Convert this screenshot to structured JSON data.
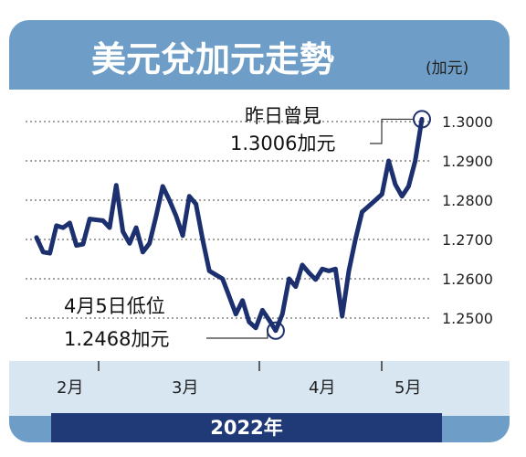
{
  "chart_data": {
    "type": "line",
    "title": "美元兌加元走勢",
    "unit": "(加元)",
    "year_label": "2022年",
    "ylim": [
      1.243,
      1.303
    ],
    "y_ticks": [
      "1.3000",
      "1.2900",
      "1.2800",
      "1.2700",
      "1.2600",
      "1.2500"
    ],
    "x_ticks": [
      "2月",
      "3月",
      "4月",
      "5月"
    ],
    "grid": true,
    "series": [
      {
        "values": [
          1.2705,
          1.2668,
          1.2665,
          1.2735,
          1.273,
          1.2742,
          1.2685,
          1.2688,
          1.2752,
          1.275,
          1.2748,
          1.273,
          1.2838,
          1.272,
          1.269,
          1.273,
          1.2668,
          1.269,
          1.276,
          1.2835,
          1.28,
          1.276,
          1.271,
          1.281,
          1.279,
          1.27,
          1.262,
          1.261,
          1.26,
          1.2555,
          1.251,
          1.2545,
          1.249,
          1.2475,
          1.252,
          1.2495,
          1.2468,
          1.251,
          1.26,
          1.258,
          1.2635,
          1.2615,
          1.2598,
          1.2625,
          1.262,
          1.2625,
          1.2505,
          1.262,
          1.27,
          1.277,
          1.2785,
          1.28,
          1.2815,
          1.29,
          1.284,
          1.281,
          1.2835,
          1.29,
          1.3006
        ]
      }
    ],
    "annotations": {
      "high": {
        "lines": [
          "昨日曾見",
          "1.3006加元"
        ],
        "value": 1.3006
      },
      "low": {
        "lines": [
          "4月5日低位",
          "1.2468加元"
        ],
        "value": 1.2468
      }
    }
  }
}
